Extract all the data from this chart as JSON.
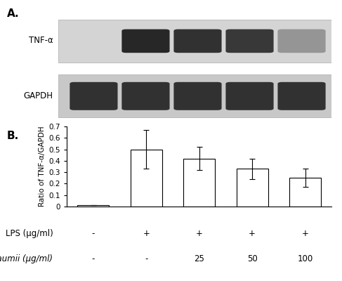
{
  "panel_A_label": "A.",
  "panel_B_label": "B.",
  "tnf_label": "TNF-α",
  "gapdh_label": "GAPDH",
  "bar_values": [
    0.01,
    0.5,
    0.42,
    0.33,
    0.25
  ],
  "bar_errors": [
    0.0,
    0.17,
    0.1,
    0.09,
    0.08
  ],
  "bar_color": "#ffffff",
  "bar_edgecolor": "#000000",
  "bar_width": 0.6,
  "ylabel": "Ratio of TNF-α/GAPDH",
  "ylim": [
    0,
    0.7
  ],
  "yticks": [
    0,
    0.1,
    0.2,
    0.3,
    0.4,
    0.5,
    0.6,
    0.7
  ],
  "lps_row_label": "LPS (μg/ml)",
  "pbaumii_row_label": "P. baumii (μg/ml)",
  "lps_values": [
    "-",
    "+",
    "+",
    "+",
    "+"
  ],
  "pbaumii_values": [
    "-",
    "-",
    "25",
    "50",
    "100"
  ],
  "background_color": "#ffffff",
  "font_color": "#000000",
  "n_bars": 5,
  "gel_bg": "#c8c8c8",
  "gel_bg_light": "#d4d4d4",
  "band_dark": "#1a1a1a",
  "band_medium": "#555555",
  "band_light": "#888888",
  "tnf_intensities": [
    0.0,
    0.92,
    0.88,
    0.85,
    0.45
  ],
  "gapdh_intensities": [
    0.88,
    0.88,
    0.88,
    0.88,
    0.88
  ]
}
